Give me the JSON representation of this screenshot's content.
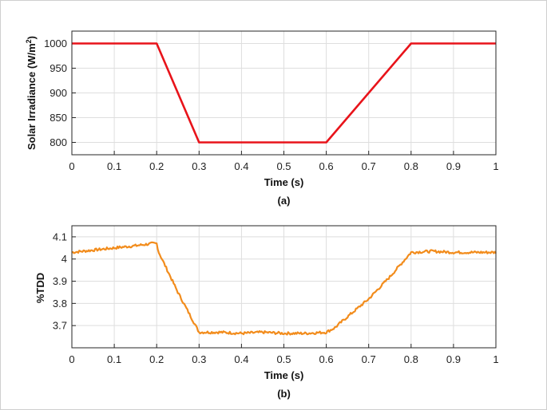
{
  "chart_data": [
    {
      "type": "line",
      "caption": "(a)",
      "xlabel": "Time (s)",
      "ylabel_main": "Solar Irradiance (W/m",
      "ylabel_sup": "2",
      "ylabel_tail": ")",
      "xlim": [
        0,
        1
      ],
      "ylim": [
        775,
        1025
      ],
      "xticks": [
        "0",
        "0.1",
        "0.2",
        "0.3",
        "0.4",
        "0.5",
        "0.6",
        "0.7",
        "0.8",
        "0.9",
        "1"
      ],
      "yticks": [
        "800",
        "850",
        "900",
        "950",
        "1000"
      ],
      "ytick_values": [
        800,
        850,
        900,
        950,
        1000
      ],
      "grid": true,
      "color": "#e8131a",
      "series": [
        {
          "x": [
            0,
            0.2,
            0.3,
            0.6,
            0.8,
            1.0
          ],
          "y": [
            1000,
            1000,
            800,
            800,
            1000,
            1000
          ]
        }
      ]
    },
    {
      "type": "line",
      "caption": "(b)",
      "xlabel": "Time (s)",
      "ylabel": "%TDD",
      "xlim": [
        0,
        1
      ],
      "ylim": [
        3.6,
        4.15
      ],
      "xticks": [
        "0",
        "0.1",
        "0.2",
        "0.3",
        "0.4",
        "0.5",
        "0.6",
        "0.7",
        "0.8",
        "0.9",
        "1"
      ],
      "yticks": [
        "3.7",
        "3.8",
        "3.9",
        "4",
        "4.1"
      ],
      "ytick_values": [
        3.7,
        3.8,
        3.9,
        4.0,
        4.1
      ],
      "grid": true,
      "color": "#f28c1c",
      "series": [
        {
          "x": [
            0,
            0.05,
            0.1,
            0.15,
            0.19,
            0.2,
            0.205,
            0.25,
            0.3,
            0.35,
            0.4,
            0.45,
            0.5,
            0.55,
            0.6,
            0.62,
            0.65,
            0.7,
            0.75,
            0.8,
            0.85,
            0.9,
            0.95,
            1.0
          ],
          "y": [
            4.03,
            4.04,
            4.05,
            4.06,
            4.07,
            4.07,
            4.03,
            3.85,
            3.67,
            3.67,
            3.665,
            3.67,
            3.665,
            3.665,
            3.67,
            3.69,
            3.74,
            3.82,
            3.92,
            4.03,
            4.035,
            4.03,
            4.03,
            4.03
          ]
        }
      ]
    }
  ]
}
